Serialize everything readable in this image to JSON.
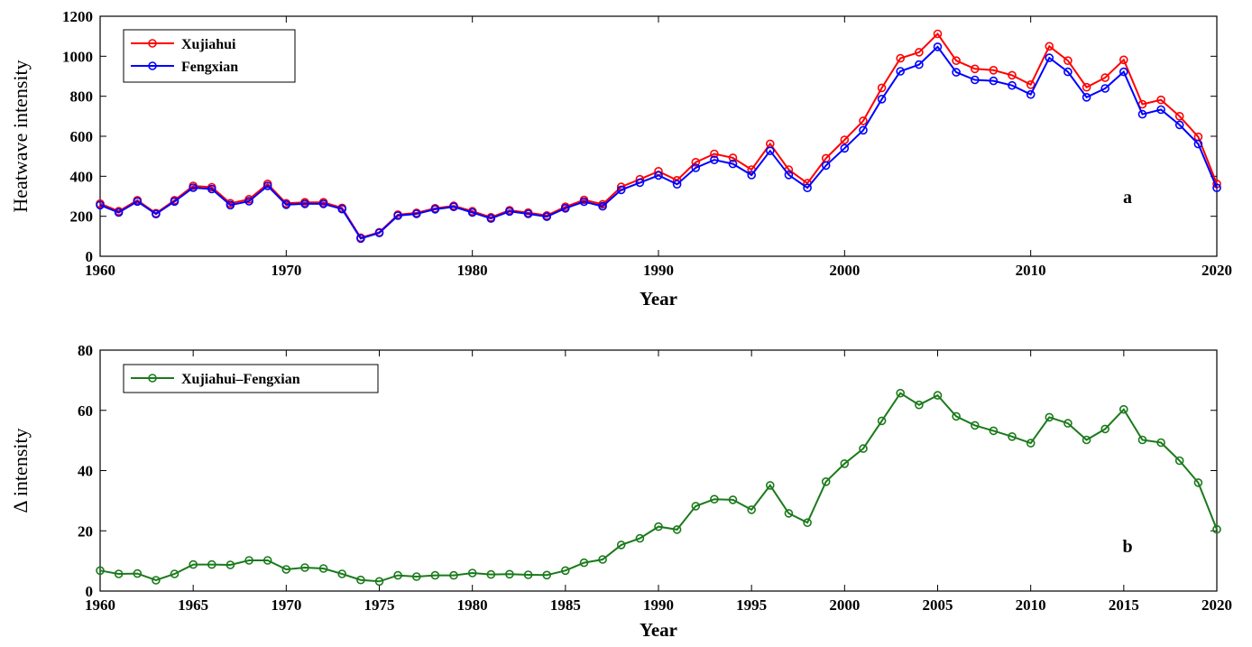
{
  "chart_data": [
    {
      "type": "line",
      "panel_letter": "a",
      "xlabel": "Year",
      "ylabel": "Heatwave intensity",
      "xlim": [
        1960,
        2020
      ],
      "ylim": [
        0,
        1200
      ],
      "xticks": [
        1960,
        1970,
        1980,
        1990,
        2000,
        2010,
        2020
      ],
      "yticks": [
        0,
        200,
        400,
        600,
        800,
        1000,
        1200
      ],
      "legend_position": "top-left",
      "grid": false,
      "x": [
        1960,
        1961,
        1962,
        1963,
        1964,
        1965,
        1966,
        1967,
        1968,
        1969,
        1970,
        1971,
        1972,
        1973,
        1974,
        1975,
        1976,
        1977,
        1978,
        1979,
        1980,
        1981,
        1982,
        1983,
        1984,
        1985,
        1986,
        1987,
        1988,
        1989,
        1990,
        1991,
        1992,
        1993,
        1994,
        1995,
        1996,
        1997,
        1998,
        1999,
        2000,
        2001,
        2002,
        2003,
        2004,
        2005,
        2006,
        2007,
        2008,
        2009,
        2010,
        2011,
        2012,
        2013,
        2014,
        2015,
        2016,
        2017,
        2018,
        2019,
        2020
      ],
      "series": [
        {
          "name": "Xujiahui",
          "color": "#ff0000",
          "values": [
            263,
            225,
            280,
            215,
            280,
            352,
            345,
            265,
            285,
            362,
            265,
            270,
            270,
            242,
            93,
            120,
            208,
            217,
            240,
            252,
            225,
            195,
            230,
            218,
            204,
            247,
            282,
            260,
            347,
            385,
            425,
            380,
            470,
            512,
            492,
            433,
            562,
            433,
            365,
            490,
            582,
            677,
            842,
            990,
            1020,
            1112,
            978,
            937,
            930,
            905,
            858,
            1050,
            978,
            845,
            893,
            982,
            760,
            782,
            700,
            597,
            362
          ]
        },
        {
          "name": "Fengxian",
          "color": "#0000ff",
          "values": [
            256,
            219,
            274,
            211,
            274,
            343,
            336,
            256,
            275,
            352,
            258,
            262,
            262,
            236,
            89,
            117,
            203,
            212,
            235,
            247,
            219,
            189,
            224,
            212,
            198,
            240,
            273,
            250,
            332,
            368,
            404,
            360,
            442,
            482,
            462,
            406,
            527,
            407,
            342,
            454,
            540,
            630,
            786,
            925,
            958,
            1047,
            920,
            882,
            877,
            854,
            809,
            992,
            922,
            795,
            839,
            922,
            710,
            733,
            657,
            561,
            342
          ]
        }
      ]
    },
    {
      "type": "line",
      "panel_letter": "b",
      "xlabel": "Year",
      "ylabel": "Δ intensity",
      "xlim": [
        1960,
        2020
      ],
      "ylim": [
        0,
        80
      ],
      "xticks": [
        1960,
        1965,
        1970,
        1975,
        1980,
        1985,
        1990,
        1995,
        2000,
        2005,
        2010,
        2015,
        2020
      ],
      "yticks": [
        0,
        20,
        40,
        60,
        80
      ],
      "legend_position": "top-left",
      "grid": false,
      "x": [
        1960,
        1961,
        1962,
        1963,
        1964,
        1965,
        1966,
        1967,
        1968,
        1969,
        1970,
        1971,
        1972,
        1973,
        1974,
        1975,
        1976,
        1977,
        1978,
        1979,
        1980,
        1981,
        1982,
        1983,
        1984,
        1985,
        1986,
        1987,
        1988,
        1989,
        1990,
        1991,
        1992,
        1993,
        1994,
        1995,
        1996,
        1997,
        1998,
        1999,
        2000,
        2001,
        2002,
        2003,
        2004,
        2005,
        2006,
        2007,
        2008,
        2009,
        2010,
        2011,
        2012,
        2013,
        2014,
        2015,
        2016,
        2017,
        2018,
        2019,
        2020
      ],
      "series": [
        {
          "name": "Xujiahui–Fengxian",
          "color": "#1a7a1a",
          "values": [
            6.8,
            5.7,
            5.8,
            3.6,
            5.7,
            8.8,
            8.8,
            8.7,
            10.2,
            10.2,
            7.2,
            7.8,
            7.5,
            5.7,
            3.7,
            3.2,
            5.2,
            4.8,
            5.2,
            5.2,
            6.0,
            5.5,
            5.6,
            5.4,
            5.3,
            6.8,
            9.4,
            10.5,
            15.3,
            17.5,
            21.4,
            20.4,
            28.2,
            30.5,
            30.3,
            27.0,
            35.1,
            25.8,
            22.7,
            36.3,
            42.3,
            47.3,
            56.5,
            65.7,
            61.8,
            65.0,
            58.0,
            55.0,
            53.2,
            51.3,
            49.1,
            57.7,
            55.7,
            50.2,
            53.8,
            60.3,
            50.2,
            49.3,
            43.3,
            36.0,
            20.5
          ]
        }
      ]
    }
  ]
}
